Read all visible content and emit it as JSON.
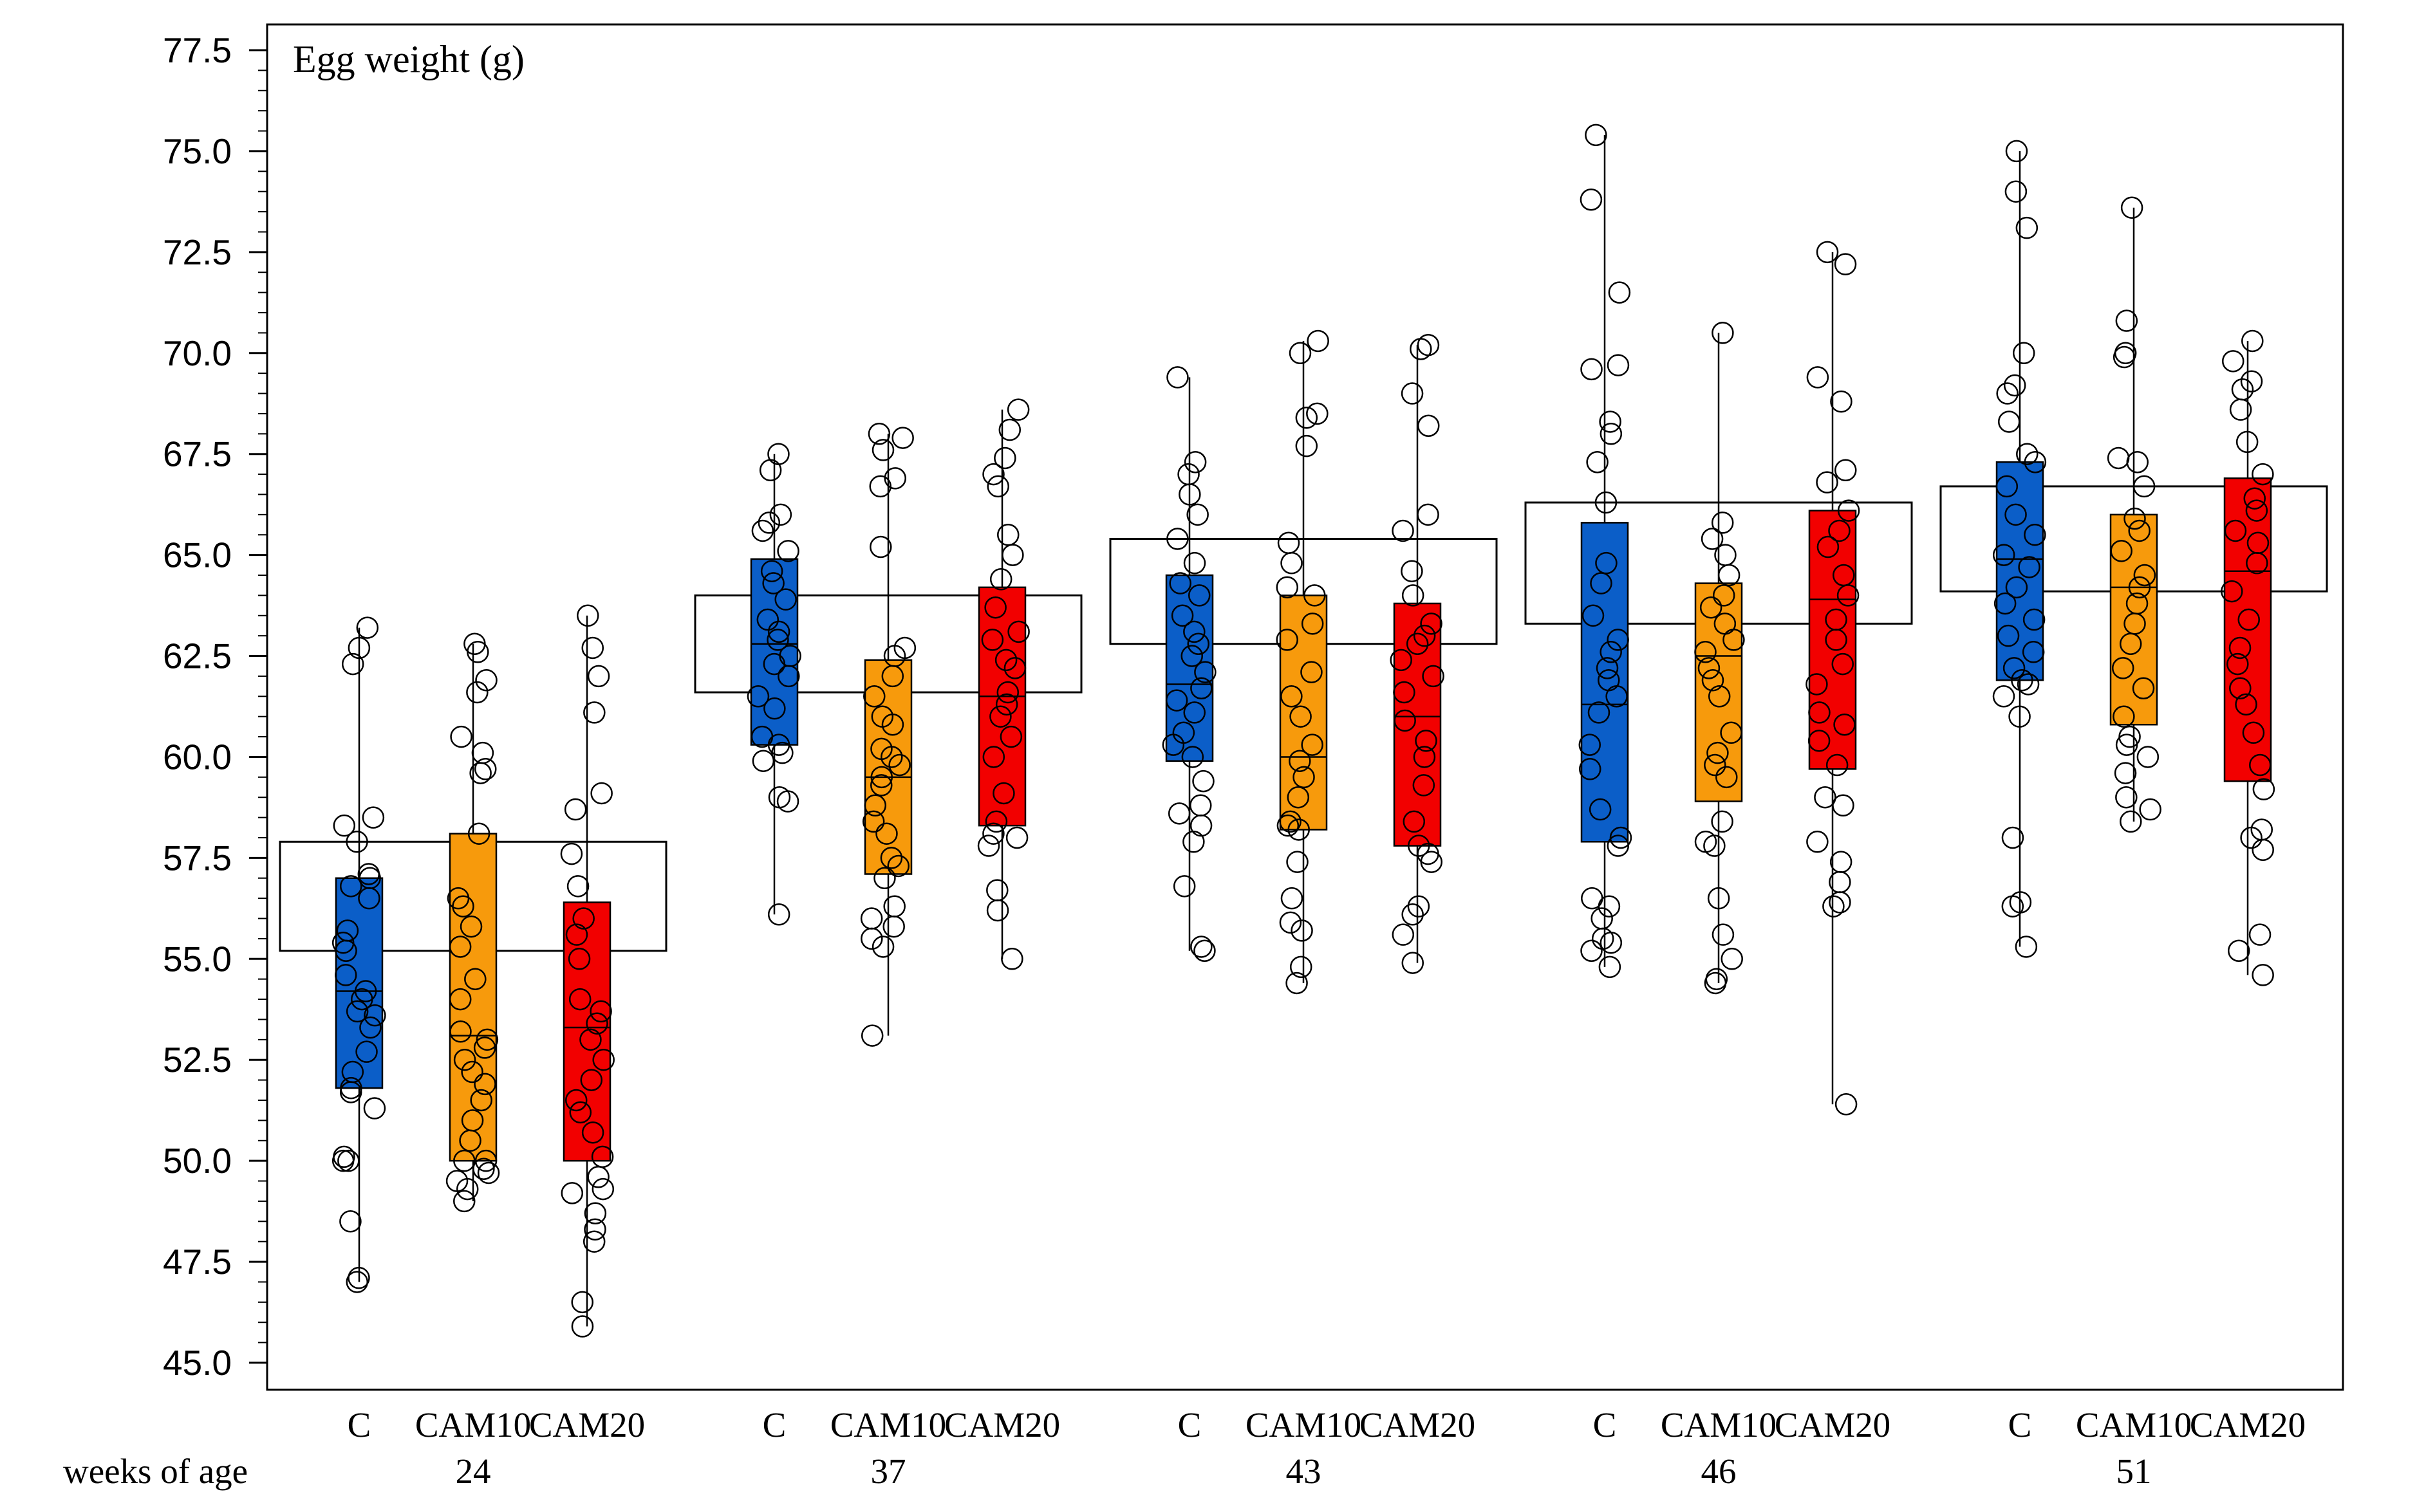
{
  "chart_data": {
    "type": "box-jitter",
    "title": "Egg weight (g)",
    "xlabel": "weeks of age",
    "ylabel": "",
    "ylim": [
      45.0,
      77.5
    ],
    "yticks": [
      "45.0",
      "47.5",
      "50.0",
      "52.5",
      "55.0",
      "57.5",
      "60.0",
      "62.5",
      "65.0",
      "67.5",
      "70.0",
      "72.5",
      "75.0",
      "77.5"
    ],
    "treatments": [
      "C",
      "CAM10",
      "CAM20"
    ],
    "colors": {
      "C": "#0b5ec8",
      "CAM10": "#f79a0c",
      "CAM20": "#f20000"
    },
    "groups": [
      {
        "week": "24",
        "group_box": [
          55.2,
          57.9
        ],
        "boxes": [
          {
            "treatment": "C",
            "min": 47.0,
            "q1": 51.8,
            "median": 54.2,
            "q3": 57.0,
            "max": 63.2,
            "points": [
              47.0,
              47.1,
              48.5,
              50.0,
              50.0,
              50.1,
              51.3,
              51.7,
              51.8,
              52.2,
              52.7,
              53.3,
              53.6,
              53.7,
              54.0,
              54.2,
              54.6,
              55.2,
              55.4,
              55.7,
              56.5,
              56.8,
              57.0,
              57.1,
              57.9,
              58.3,
              58.5,
              62.3,
              62.7,
              63.2
            ]
          },
          {
            "treatment": "CAM10",
            "min": 49.0,
            "q1": 50.0,
            "median": 53.1,
            "q3": 58.1,
            "max": 62.8,
            "points": [
              49.0,
              49.3,
              49.5,
              49.7,
              49.8,
              50.0,
              50.0,
              50.5,
              51.0,
              51.5,
              51.9,
              52.2,
              52.5,
              52.8,
              53.0,
              53.2,
              54.0,
              54.5,
              55.3,
              55.8,
              56.3,
              56.5,
              58.1,
              59.6,
              59.7,
              60.1,
              60.5,
              61.6,
              61.9,
              62.6,
              62.8
            ]
          },
          {
            "treatment": "CAM20",
            "min": 45.9,
            "q1": 50.0,
            "median": 53.3,
            "q3": 56.4,
            "max": 63.5,
            "points": [
              45.9,
              46.5,
              48.0,
              48.3,
              48.7,
              49.2,
              49.3,
              49.6,
              50.1,
              50.7,
              51.2,
              51.5,
              52.0,
              52.5,
              53.0,
              53.4,
              53.7,
              54.0,
              55.0,
              55.6,
              56.0,
              56.8,
              57.6,
              58.7,
              59.1,
              61.1,
              62.0,
              62.7,
              63.5
            ]
          }
        ]
      },
      {
        "week": "37",
        "group_box": [
          61.6,
          64.0
        ],
        "boxes": [
          {
            "treatment": "C",
            "min": 56.1,
            "q1": 60.3,
            "median": 62.8,
            "q3": 64.9,
            "max": 67.5,
            "points": [
              56.1,
              58.9,
              59.0,
              59.9,
              60.1,
              60.3,
              60.5,
              61.2,
              61.5,
              62.0,
              62.3,
              62.5,
              62.9,
              63.1,
              63.4,
              63.9,
              64.3,
              64.6,
              65.1,
              65.6,
              65.8,
              66.0,
              67.1,
              67.5
            ]
          },
          {
            "treatment": "CAM10",
            "min": 53.1,
            "q1": 57.1,
            "median": 59.5,
            "q3": 62.4,
            "max": 68.0,
            "points": [
              53.1,
              55.3,
              55.5,
              55.8,
              56.0,
              56.3,
              57.0,
              57.3,
              57.5,
              58.1,
              58.4,
              58.8,
              59.3,
              59.5,
              59.8,
              60.0,
              60.2,
              60.8,
              61.0,
              61.5,
              62.0,
              62.5,
              62.7,
              65.2,
              66.7,
              66.9,
              67.6,
              67.9,
              68.0
            ]
          },
          {
            "treatment": "CAM20",
            "min": 55.0,
            "q1": 58.3,
            "median": 61.5,
            "q3": 64.2,
            "max": 68.6,
            "points": [
              55.0,
              56.2,
              56.7,
              57.8,
              58.0,
              58.1,
              58.4,
              59.1,
              60.0,
              60.5,
              61.0,
              61.3,
              61.6,
              62.2,
              62.4,
              62.9,
              63.1,
              63.7,
              64.4,
              65.0,
              65.5,
              66.7,
              67.0,
              67.4,
              68.1,
              68.6
            ]
          }
        ]
      },
      {
        "week": "43",
        "group_box": [
          62.8,
          65.4
        ],
        "boxes": [
          {
            "treatment": "C",
            "min": 55.2,
            "q1": 59.9,
            "median": 61.8,
            "q3": 64.5,
            "max": 69.4,
            "points": [
              55.2,
              55.3,
              56.8,
              57.9,
              58.3,
              58.6,
              58.8,
              59.4,
              60.0,
              60.3,
              60.6,
              61.1,
              61.4,
              61.7,
              62.1,
              62.5,
              62.8,
              63.1,
              63.5,
              64.0,
              64.3,
              64.8,
              65.4,
              66.0,
              66.5,
              67.0,
              67.3,
              69.4
            ]
          },
          {
            "treatment": "CAM10",
            "min": 54.4,
            "q1": 58.2,
            "median": 60.0,
            "q3": 64.0,
            "max": 70.3,
            "points": [
              54.4,
              54.8,
              55.7,
              55.9,
              56.5,
              57.4,
              58.2,
              58.3,
              58.4,
              59.0,
              59.5,
              59.9,
              60.3,
              61.0,
              61.5,
              62.1,
              62.9,
              63.3,
              64.0,
              64.2,
              64.8,
              65.3,
              67.7,
              68.4,
              68.5,
              70.0,
              70.3
            ]
          },
          {
            "treatment": "CAM20",
            "min": 54.9,
            "q1": 57.8,
            "median": 61.0,
            "q3": 63.8,
            "max": 70.2,
            "points": [
              54.9,
              55.6,
              56.1,
              56.3,
              57.4,
              57.6,
              57.8,
              58.4,
              59.3,
              60.0,
              60.4,
              60.9,
              61.6,
              62.0,
              62.4,
              62.8,
              63.0,
              63.3,
              64.0,
              64.6,
              65.6,
              66.0,
              68.2,
              69.0,
              70.1,
              70.2
            ]
          }
        ]
      },
      {
        "week": "46",
        "group_box": [
          63.3,
          66.3
        ],
        "boxes": [
          {
            "treatment": "C",
            "min": 54.8,
            "q1": 57.9,
            "median": 61.3,
            "q3": 65.8,
            "max": 75.4,
            "points": [
              54.8,
              55.2,
              55.4,
              55.5,
              56.0,
              56.3,
              56.5,
              57.8,
              58.0,
              58.7,
              59.7,
              60.3,
              61.1,
              61.5,
              61.9,
              62.2,
              62.6,
              62.9,
              63.5,
              64.3,
              64.8,
              66.3,
              67.3,
              68.0,
              68.3,
              69.6,
              69.7,
              71.5,
              73.8,
              75.4
            ]
          },
          {
            "treatment": "CAM10",
            "min": 54.4,
            "q1": 58.9,
            "median": 62.5,
            "q3": 64.3,
            "max": 70.5,
            "points": [
              54.4,
              54.5,
              55.0,
              55.6,
              56.5,
              57.8,
              57.9,
              58.4,
              59.5,
              59.8,
              60.1,
              60.6,
              61.5,
              61.9,
              62.2,
              62.6,
              62.9,
              63.3,
              63.7,
              64.0,
              64.5,
              65.0,
              65.4,
              65.8,
              70.5
            ]
          },
          {
            "treatment": "CAM20",
            "min": 51.4,
            "q1": 59.7,
            "median": 63.9,
            "q3": 66.1,
            "max": 72.5,
            "points": [
              51.4,
              56.3,
              56.4,
              56.9,
              57.4,
              57.9,
              58.8,
              59.0,
              59.8,
              60.4,
              60.8,
              61.1,
              61.8,
              62.3,
              62.9,
              63.4,
              64.0,
              64.5,
              65.2,
              65.6,
              66.1,
              66.8,
              67.1,
              68.8,
              69.4,
              72.2,
              72.5
            ]
          }
        ]
      },
      {
        "week": "51",
        "group_box": [
          64.1,
          66.7
        ],
        "boxes": [
          {
            "treatment": "C",
            "min": 55.3,
            "q1": 61.9,
            "median": 64.9,
            "q3": 67.3,
            "max": 75.0,
            "points": [
              55.3,
              56.3,
              56.4,
              58.0,
              61.0,
              61.5,
              61.8,
              61.9,
              62.2,
              62.6,
              63.0,
              63.4,
              63.8,
              64.2,
              64.7,
              65.0,
              65.5,
              66.0,
              66.7,
              67.3,
              67.5,
              68.3,
              69.0,
              69.2,
              70.0,
              73.1,
              74.0,
              75.0
            ]
          },
          {
            "treatment": "CAM10",
            "min": 58.4,
            "q1": 60.8,
            "median": 64.2,
            "q3": 66.0,
            "max": 73.6,
            "points": [
              58.4,
              58.7,
              59.0,
              59.6,
              60.0,
              60.3,
              60.5,
              61.0,
              61.7,
              62.2,
              62.8,
              63.3,
              63.8,
              64.2,
              64.5,
              65.1,
              65.6,
              65.9,
              66.7,
              67.3,
              67.4,
              69.9,
              70.0,
              70.8,
              73.6
            ]
          },
          {
            "treatment": "CAM20",
            "min": 54.6,
            "q1": 59.4,
            "median": 64.6,
            "q3": 66.9,
            "max": 70.3,
            "points": [
              54.6,
              55.2,
              55.6,
              57.7,
              58.0,
              58.2,
              59.2,
              59.8,
              60.6,
              61.3,
              61.7,
              62.3,
              62.7,
              63.4,
              64.1,
              64.8,
              65.3,
              65.6,
              66.1,
              66.4,
              67.0,
              67.8,
              68.6,
              69.1,
              69.3,
              69.8,
              70.3
            ]
          }
        ]
      }
    ]
  }
}
